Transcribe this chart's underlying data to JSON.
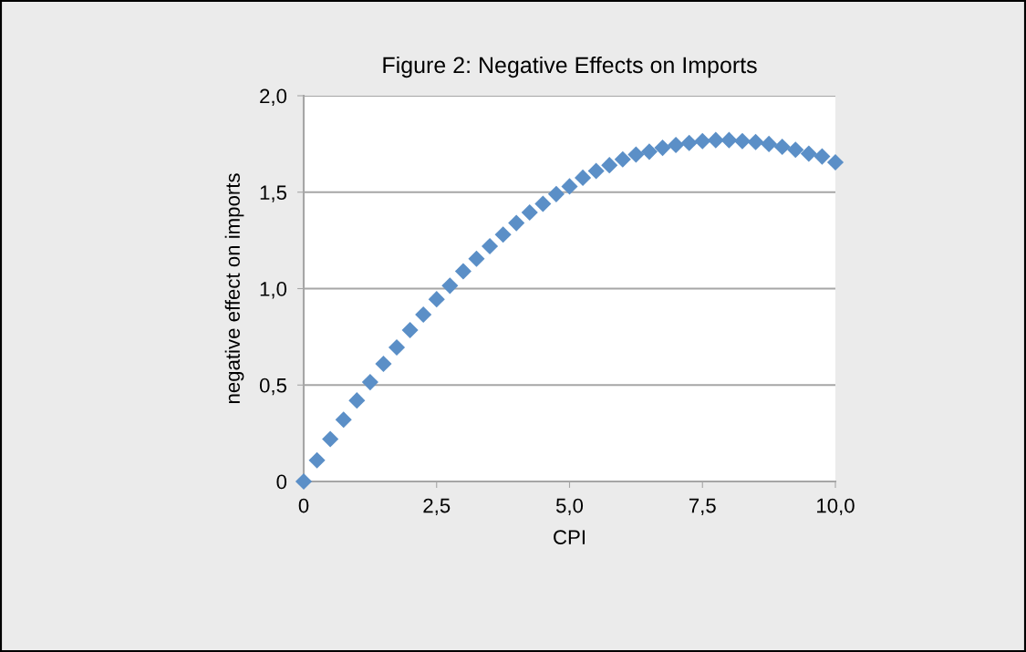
{
  "chart_data": {
    "type": "scatter",
    "title": "Figure 2: Negative Effects on Imports",
    "xlabel": "CPI",
    "ylabel": "negative effect on imports",
    "x": [
      0,
      0.25,
      0.5,
      0.75,
      1.0,
      1.25,
      1.5,
      1.75,
      2.0,
      2.25,
      2.5,
      2.75,
      3.0,
      3.25,
      3.5,
      3.75,
      4.0,
      4.25,
      4.5,
      4.75,
      5.0,
      5.25,
      5.5,
      5.75,
      6.0,
      6.25,
      6.5,
      6.75,
      7.0,
      7.25,
      7.5,
      7.75,
      8.0,
      8.25,
      8.5,
      8.75,
      9.0,
      9.25,
      9.5,
      9.75,
      10.0
    ],
    "series": [
      {
        "color": "#5b8fc7",
        "values": [
          0,
          0.11,
          0.22,
          0.32,
          0.42,
          0.515,
          0.61,
          0.695,
          0.785,
          0.865,
          0.945,
          1.015,
          1.09,
          1.155,
          1.22,
          1.28,
          1.34,
          1.395,
          1.44,
          1.49,
          1.53,
          1.575,
          1.61,
          1.64,
          1.67,
          1.695,
          1.71,
          1.73,
          1.745,
          1.755,
          1.765,
          1.77,
          1.77,
          1.765,
          1.76,
          1.75,
          1.735,
          1.72,
          1.7,
          1.685,
          1.655
        ]
      }
    ],
    "xlim": [
      0,
      10
    ],
    "ylim": [
      0,
      2
    ],
    "xticks": [
      0,
      {
        "value": 2.5,
        "label": "2,5"
      },
      {
        "value": 5,
        "label": "5,0"
      },
      {
        "value": 7.5,
        "label": "7,5"
      },
      {
        "value": 10,
        "label": "10,0"
      }
    ],
    "yticks": [
      0,
      {
        "value": 0.5,
        "label": "0,5"
      },
      {
        "value": 1,
        "label": "1,0"
      },
      {
        "value": 1.5,
        "label": "1,5"
      },
      {
        "value": 2,
        "label": "2,0"
      }
    ],
    "grid": "y",
    "marker": "diamond",
    "legend": false
  }
}
